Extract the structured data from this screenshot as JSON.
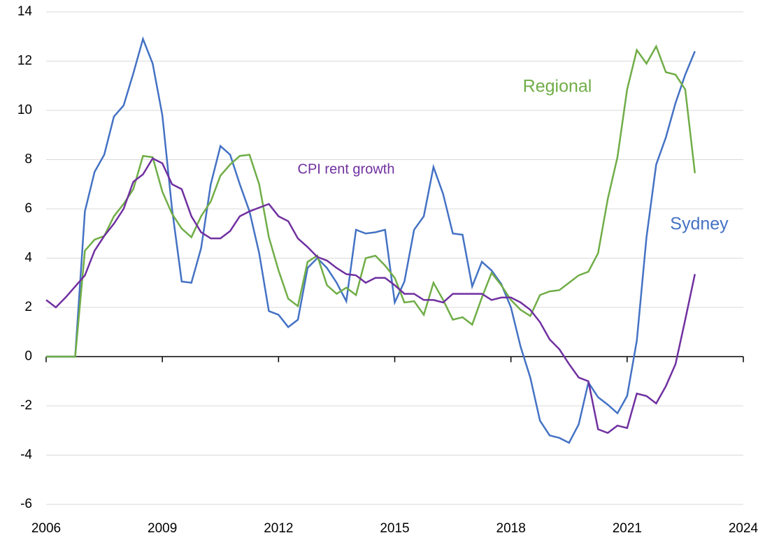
{
  "chart_data": {
    "type": "line",
    "x": [
      2006,
      2006.25,
      2006.5,
      2006.75,
      2007,
      2007.25,
      2007.5,
      2007.75,
      2008,
      2008.25,
      2008.5,
      2008.75,
      2009,
      2009.25,
      2009.5,
      2009.75,
      2010,
      2010.25,
      2010.5,
      2010.75,
      2011,
      2011.25,
      2011.5,
      2011.75,
      2012,
      2012.25,
      2012.5,
      2012.75,
      2013,
      2013.25,
      2013.5,
      2013.75,
      2014,
      2014.25,
      2014.5,
      2014.75,
      2015,
      2015.25,
      2015.5,
      2015.75,
      2016,
      2016.25,
      2016.5,
      2016.75,
      2017,
      2017.25,
      2017.5,
      2017.75,
      2018,
      2018.25,
      2018.5,
      2018.75,
      2019,
      2019.25,
      2019.5,
      2019.75,
      2020,
      2020.25,
      2020.5,
      2020.75,
      2021,
      2021.25,
      2021.5,
      2021.75,
      2022,
      2022.25,
      2022.5,
      2022.75
    ],
    "series": [
      {
        "name": "Sydney",
        "color": "#4472c4",
        "values": [
          0,
          0,
          0,
          0,
          5.9,
          7.5,
          8.2,
          9.75,
          10.2,
          11.5,
          12.9,
          11.9,
          9.8,
          6.0,
          3.05,
          3.0,
          4.4,
          7.0,
          8.55,
          8.2,
          7.0,
          5.9,
          4.2,
          1.85,
          1.7,
          1.2,
          1.5,
          3.6,
          4.0,
          3.6,
          3.0,
          2.25,
          5.15,
          5.0,
          5.05,
          5.15,
          2.2,
          3.05,
          5.15,
          5.7,
          7.7,
          6.6,
          5.0,
          4.95,
          2.85,
          3.85,
          3.5,
          2.95,
          2.0,
          0.4,
          -0.85,
          -2.6,
          -3.2,
          -3.3,
          -3.5,
          -2.75,
          -1.05,
          -1.65,
          -1.95,
          -2.3,
          -1.6,
          0.65,
          4.85,
          7.8,
          8.9,
          10.3,
          11.45,
          12.4
        ]
      },
      {
        "name": "Regional",
        "color": "#70ad47",
        "values": [
          0,
          0,
          0,
          0,
          4.3,
          4.75,
          4.9,
          5.7,
          6.2,
          6.8,
          8.15,
          8.1,
          6.7,
          5.8,
          5.2,
          4.85,
          5.7,
          6.3,
          7.35,
          7.8,
          8.15,
          8.2,
          7.0,
          4.85,
          3.5,
          2.35,
          2.05,
          3.85,
          4.1,
          2.9,
          2.55,
          2.8,
          2.5,
          4.0,
          4.1,
          3.7,
          3.2,
          2.2,
          2.25,
          1.7,
          3.0,
          2.3,
          1.5,
          1.6,
          1.3,
          2.4,
          3.4,
          2.9,
          2.3,
          1.9,
          1.65,
          2.5,
          2.65,
          2.7,
          3.0,
          3.3,
          3.45,
          4.2,
          6.4,
          8.1,
          10.85,
          12.45,
          11.9,
          12.6,
          11.55,
          11.45,
          10.85,
          7.45
        ]
      },
      {
        "name": "CPI rent growth",
        "color": "#7030a0",
        "values": [
          2.3,
          2.0,
          2.4,
          2.85,
          3.3,
          4.3,
          4.9,
          5.4,
          6.0,
          7.1,
          7.4,
          8.05,
          7.85,
          7.0,
          6.8,
          5.7,
          5.05,
          4.8,
          4.8,
          5.1,
          5.7,
          5.9,
          6.05,
          6.2,
          5.7,
          5.5,
          4.8,
          4.45,
          4.05,
          3.9,
          3.6,
          3.35,
          3.3,
          3.0,
          3.2,
          3.2,
          2.9,
          2.55,
          2.55,
          2.3,
          2.3,
          2.2,
          2.55,
          2.55,
          2.55,
          2.55,
          2.3,
          2.4,
          2.4,
          2.2,
          1.9,
          1.4,
          0.7,
          0.3,
          -0.3,
          -0.85,
          -1.0,
          -2.95,
          -3.1,
          -2.8,
          -2.9,
          -1.5,
          -1.6,
          -1.9,
          -1.2,
          -0.3,
          1.5,
          3.35
        ]
      }
    ],
    "xlim": [
      2006,
      2024
    ],
    "xticks": [
      2006,
      2009,
      2012,
      2015,
      2018,
      2021,
      2024
    ],
    "ylim": [
      -6,
      14
    ],
    "yticks": [
      -6,
      -4,
      -2,
      0,
      2,
      4,
      6,
      8,
      10,
      12,
      14
    ],
    "grid": true
  }
}
